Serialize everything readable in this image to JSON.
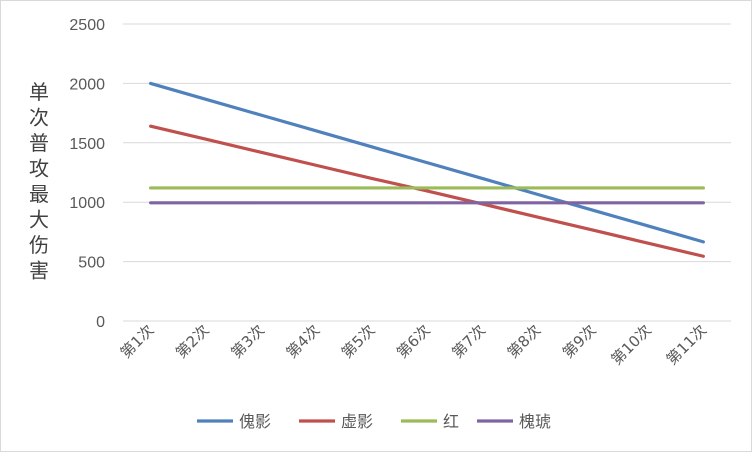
{
  "chart_data": {
    "type": "line",
    "title": "",
    "xlabel": "",
    "ylabel": "单次普攻最大伤害",
    "categories": [
      "第1次",
      "第2次",
      "第3次",
      "第4次",
      "第5次",
      "第6次",
      "第7次",
      "第8次",
      "第9次",
      "第10次",
      "第11次"
    ],
    "ylim": [
      0,
      2500
    ],
    "yticks": [
      0,
      500,
      1000,
      1500,
      2000,
      2500
    ],
    "grid": true,
    "legend_position": "bottom",
    "series": [
      {
        "name": "傀影",
        "color": "#4f81bd",
        "values": [
          2000,
          1866,
          1733,
          1600,
          1466,
          1333,
          1200,
          1066,
          933,
          800,
          666
        ]
      },
      {
        "name": "虚影",
        "color": "#c0504d",
        "values": [
          1640,
          1530,
          1420,
          1310,
          1200,
          1095,
          985,
          875,
          765,
          655,
          545
        ]
      },
      {
        "name": "红",
        "color": "#9bbb59",
        "values": [
          1120,
          1120,
          1120,
          1120,
          1120,
          1120,
          1120,
          1120,
          1120,
          1120,
          1120
        ]
      },
      {
        "name": "槐琥",
        "color": "#8064a2",
        "values": [
          995,
          995,
          995,
          995,
          995,
          995,
          995,
          995,
          995,
          995,
          995
        ]
      }
    ]
  }
}
